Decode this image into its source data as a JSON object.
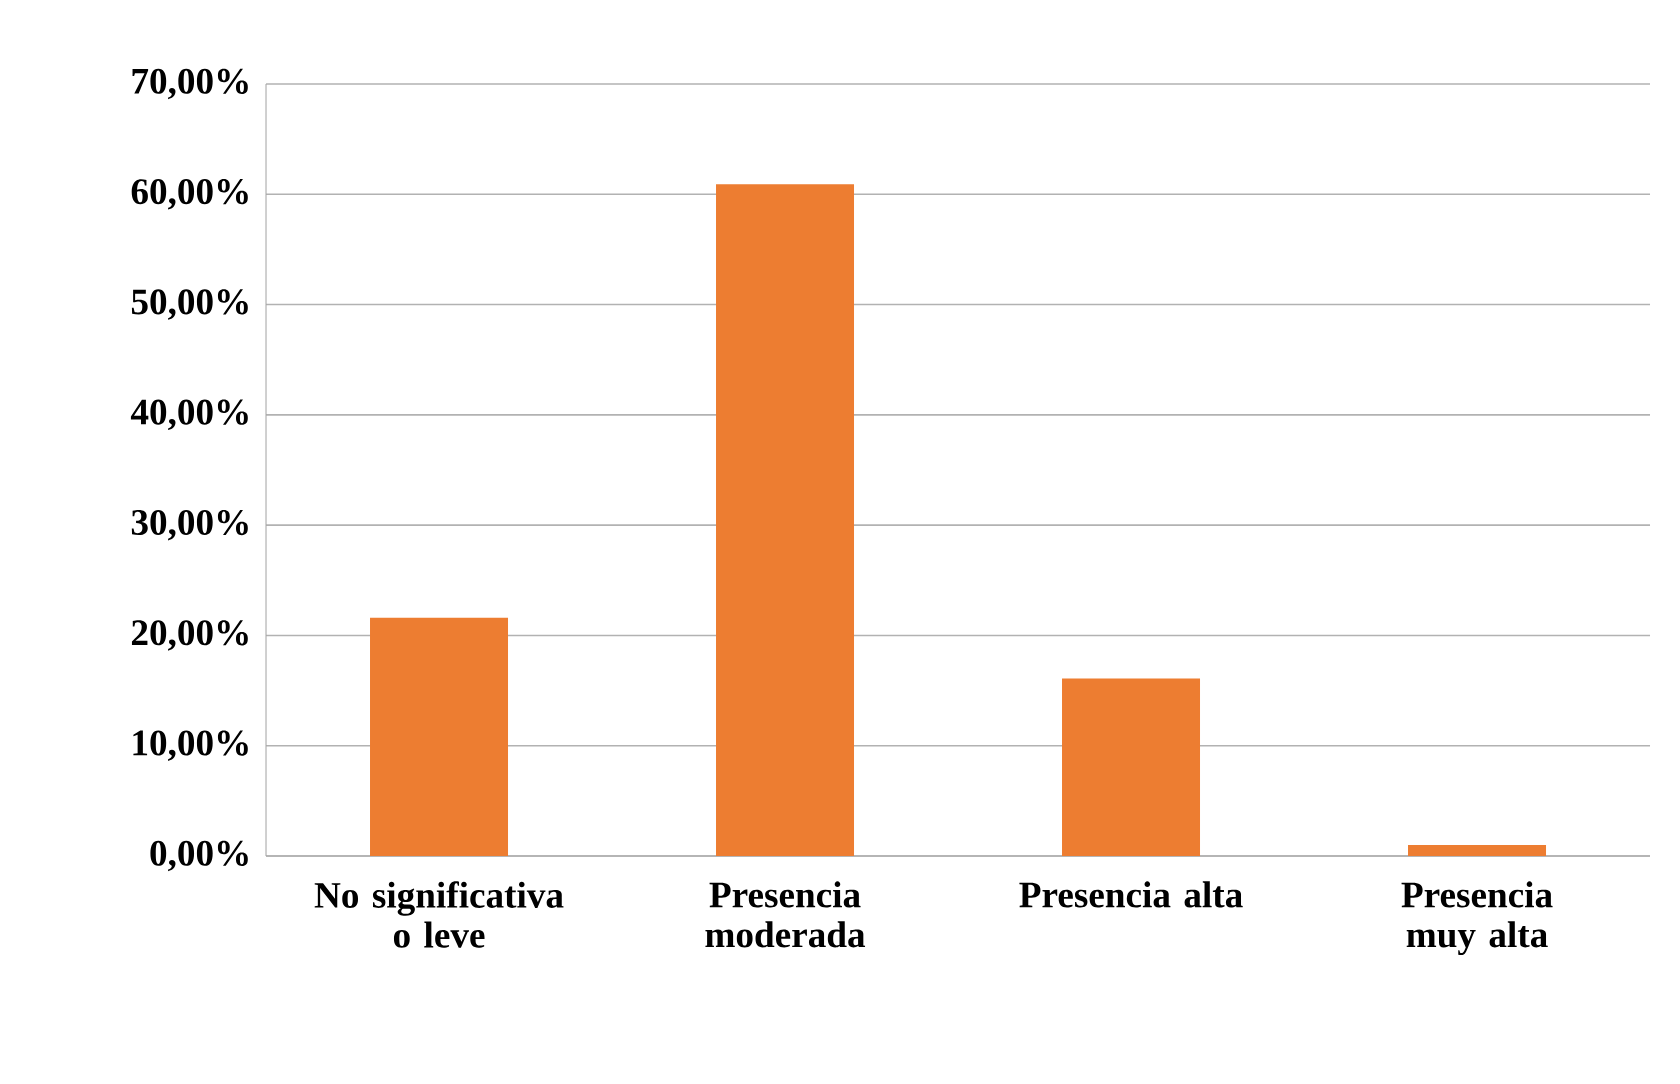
{
  "chart_data": {
    "type": "bar",
    "categories": [
      "No significativa o leve",
      "Presencia moderada",
      "Presencia alta",
      "Presencia muy alta"
    ],
    "values": [
      21.6,
      60.9,
      16.1,
      1.0
    ],
    "color": "#ed7d31",
    "ylim": [
      0,
      70
    ],
    "yticks": [
      {
        "value": 0,
        "label": "0,00%"
      },
      {
        "value": 10,
        "label": "10,00%"
      },
      {
        "value": 20,
        "label": "20,00%"
      },
      {
        "value": 30,
        "label": "30,00%"
      },
      {
        "value": 40,
        "label": "40,00%"
      },
      {
        "value": 50,
        "label": "50,00%"
      },
      {
        "value": 60,
        "label": "60,00%"
      },
      {
        "value": 70,
        "label": "70,00%"
      }
    ],
    "grid": "y"
  }
}
